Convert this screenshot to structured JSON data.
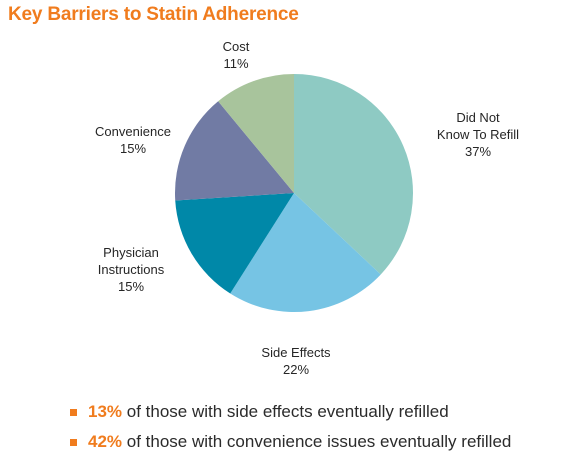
{
  "chart_data": {
    "type": "pie",
    "title": "Key Barriers to Statin Adherence",
    "slices": [
      {
        "label_lines": [
          "Did Not",
          "Know To Refill"
        ],
        "value": 37,
        "value_label": "37%",
        "color": "#8ecac3"
      },
      {
        "label_lines": [
          "Side Effects"
        ],
        "value": 22,
        "value_label": "22%",
        "color": "#76c4e4"
      },
      {
        "label_lines": [
          "Physician",
          "Instructions"
        ],
        "value": 15,
        "value_label": "15%",
        "color": "#0088a8"
      },
      {
        "label_lines": [
          "Convenience"
        ],
        "value": 15,
        "value_label": "15%",
        "color": "#717ba4"
      },
      {
        "label_lines": [
          "Cost"
        ],
        "value": 11,
        "value_label": "11%",
        "color": "#a8c49c"
      }
    ]
  },
  "notes": [
    {
      "highlight": "13%",
      "text": " of those with side effects eventually refilled"
    },
    {
      "highlight": "42%",
      "text": " of those with convenience issues eventually refilled"
    }
  ],
  "colors": {
    "accent": "#f07c1e"
  }
}
